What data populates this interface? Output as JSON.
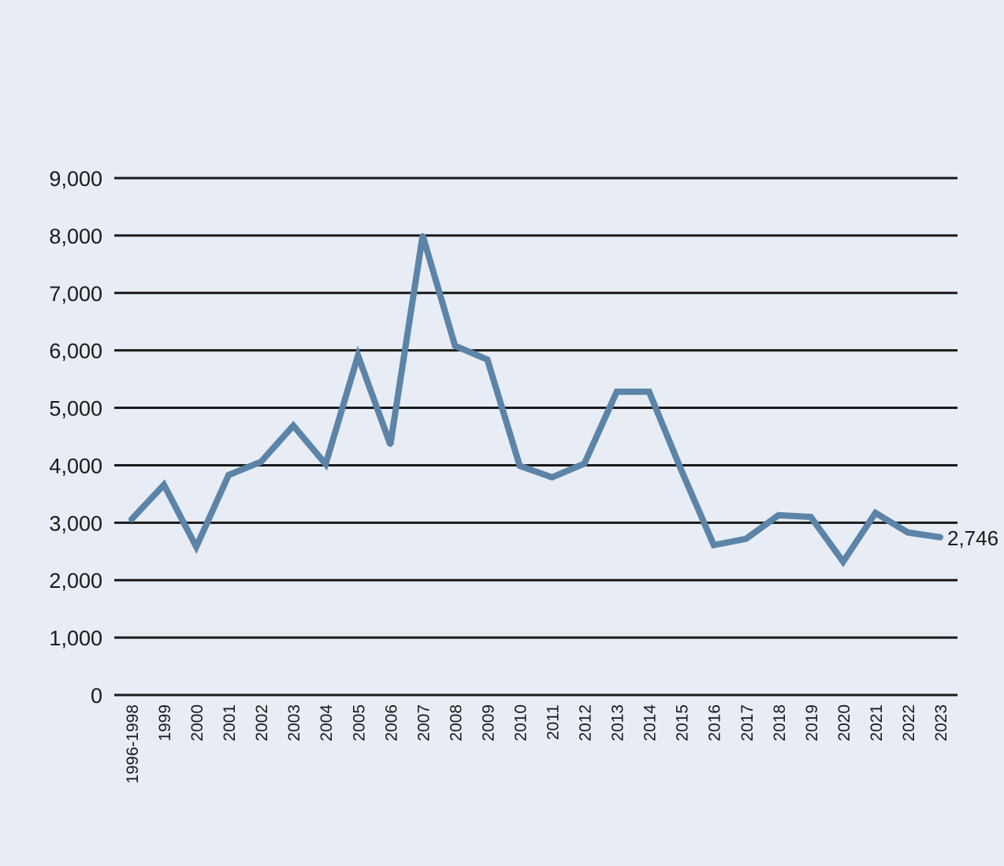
{
  "chart_data": {
    "type": "line",
    "title": "",
    "xlabel": "",
    "ylabel": "",
    "ylim": [
      0,
      9000
    ],
    "yticks": [
      "0",
      "1,000",
      "2,000",
      "3,000",
      "4,000",
      "5,000",
      "6,000",
      "7,000",
      "8,000",
      "9,000"
    ],
    "grid": true,
    "categories": [
      "1996-1998",
      "1999",
      "2000",
      "2001",
      "2002",
      "2003",
      "2004",
      "2005",
      "2006",
      "2007",
      "2008",
      "2009",
      "2010",
      "2011",
      "2012",
      "2013",
      "2014",
      "2015",
      "2016",
      "2017",
      "2018",
      "2019",
      "2020",
      "2021",
      "2022",
      "2023"
    ],
    "series": [
      {
        "name": "",
        "color": "#5b84a8",
        "values": [
          3060,
          3660,
          2580,
          3830,
          4060,
          4690,
          4020,
          5910,
          4360,
          8000,
          6080,
          5840,
          3990,
          3790,
          4030,
          5280,
          5280,
          3910,
          2610,
          2720,
          3130,
          3100,
          2320,
          3170,
          2830,
          2746
        ]
      }
    ],
    "end_label": "2,746"
  }
}
